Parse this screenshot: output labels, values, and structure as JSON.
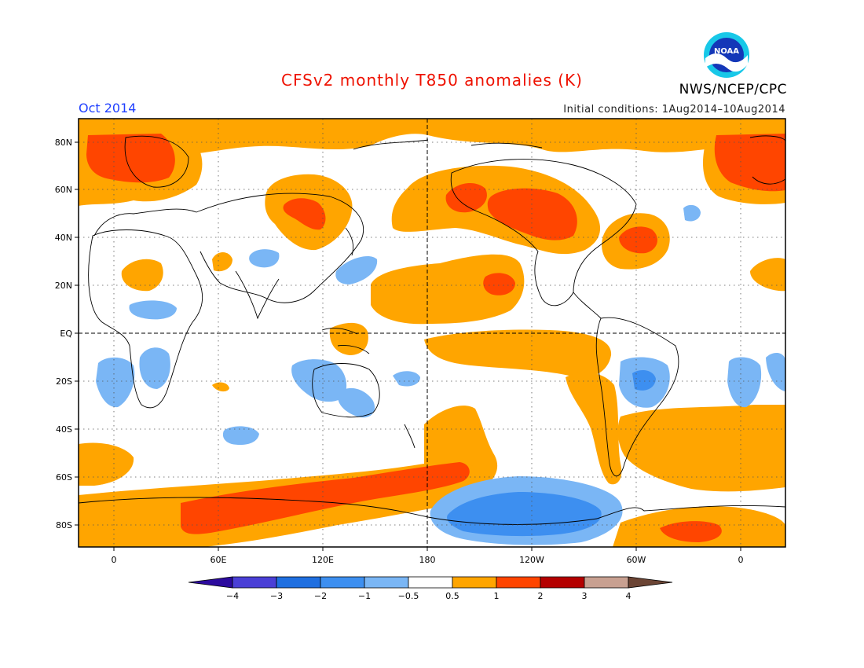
{
  "header": {
    "title": "CFSv2 monthly T850 anomalies (K)",
    "month": "Oct 2014",
    "initial_conditions": "Initial conditions: 1Aug2014–10Aug2014",
    "agency": "NWS/NCEP/CPC",
    "logo_text": "NOAA"
  },
  "map": {
    "lat_labels": [
      "80N",
      "60N",
      "40N",
      "20N",
      "EQ",
      "20S",
      "40S",
      "60S",
      "80S"
    ],
    "lon_labels": [
      "0",
      "60E",
      "120E",
      "180",
      "120W",
      "60W",
      "0"
    ]
  },
  "colorbar": {
    "labels": [
      "−4",
      "−3",
      "−2",
      "−1",
      "−0.5",
      "0.5",
      "1",
      "2",
      "3",
      "4"
    ],
    "colors": [
      "#2c0a9e",
      "#4a3fd6",
      "#1f6fe0",
      "#3d8ff0",
      "#7ab6f5",
      "#ffffff",
      "#ffa500",
      "#ff4500",
      "#b40000",
      "#c8a091",
      "#6b4434"
    ]
  },
  "anomaly_colors": {
    "warm_1": "#ffa500",
    "warm_2": "#ff4500",
    "cool_1": "#7ab6f5",
    "cool_2": "#3d8ff0"
  }
}
